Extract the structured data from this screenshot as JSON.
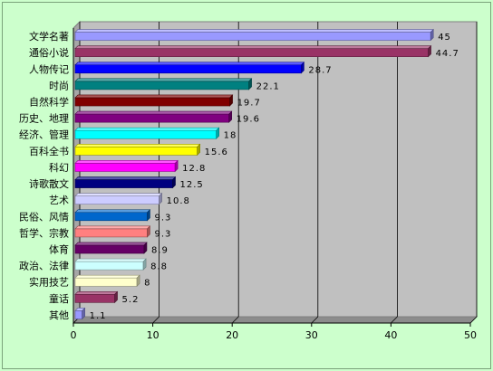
{
  "chart_data": {
    "type": "bar",
    "orientation": "horizontal",
    "style": "3d",
    "categories": [
      "文学名著",
      "通俗小说",
      "人物传记",
      "时尚",
      "自然科学",
      "历史、地理",
      "经济、管理",
      "百科全书",
      "科幻",
      "诗歌散文",
      "艺术",
      "民俗、风情",
      "哲学、宗教",
      "体育",
      "政治、法律",
      "实用技艺",
      "童话",
      "其他"
    ],
    "values": [
      45,
      44.7,
      28.7,
      22.1,
      19.7,
      19.6,
      18,
      15.6,
      12.8,
      12.5,
      10.8,
      9.3,
      9.3,
      8.9,
      8.8,
      8,
      5.2,
      1.1
    ],
    "value_labels": [
      "45",
      "44.7",
      "28.7",
      "22.1",
      "19.7",
      "19.6",
      "18",
      "15.6",
      "12.8",
      "12.5",
      "10.8",
      "9.3",
      "9.3",
      "8.9",
      "8.8",
      "8",
      "5.2",
      "1.1"
    ],
    "colors": [
      "#9999ff",
      "#993366",
      "#0000ff",
      "#008080",
      "#800000",
      "#800080",
      "#00ffff",
      "#ffff00",
      "#ff00ff",
      "#000080",
      "#ccccff",
      "#0066cc",
      "#ff8080",
      "#660066",
      "#ccffff",
      "#ffffcc",
      "#993366",
      "#9999ff"
    ],
    "x_ticks": [
      "0",
      "10",
      "20",
      "30",
      "40",
      "50"
    ],
    "xlim": [
      0,
      50
    ],
    "title": "",
    "xlabel": "",
    "ylabel": "",
    "grid": "vertical",
    "legend": "none",
    "plot_background": "#c0c0c0",
    "page_background": "#ccffcc"
  }
}
